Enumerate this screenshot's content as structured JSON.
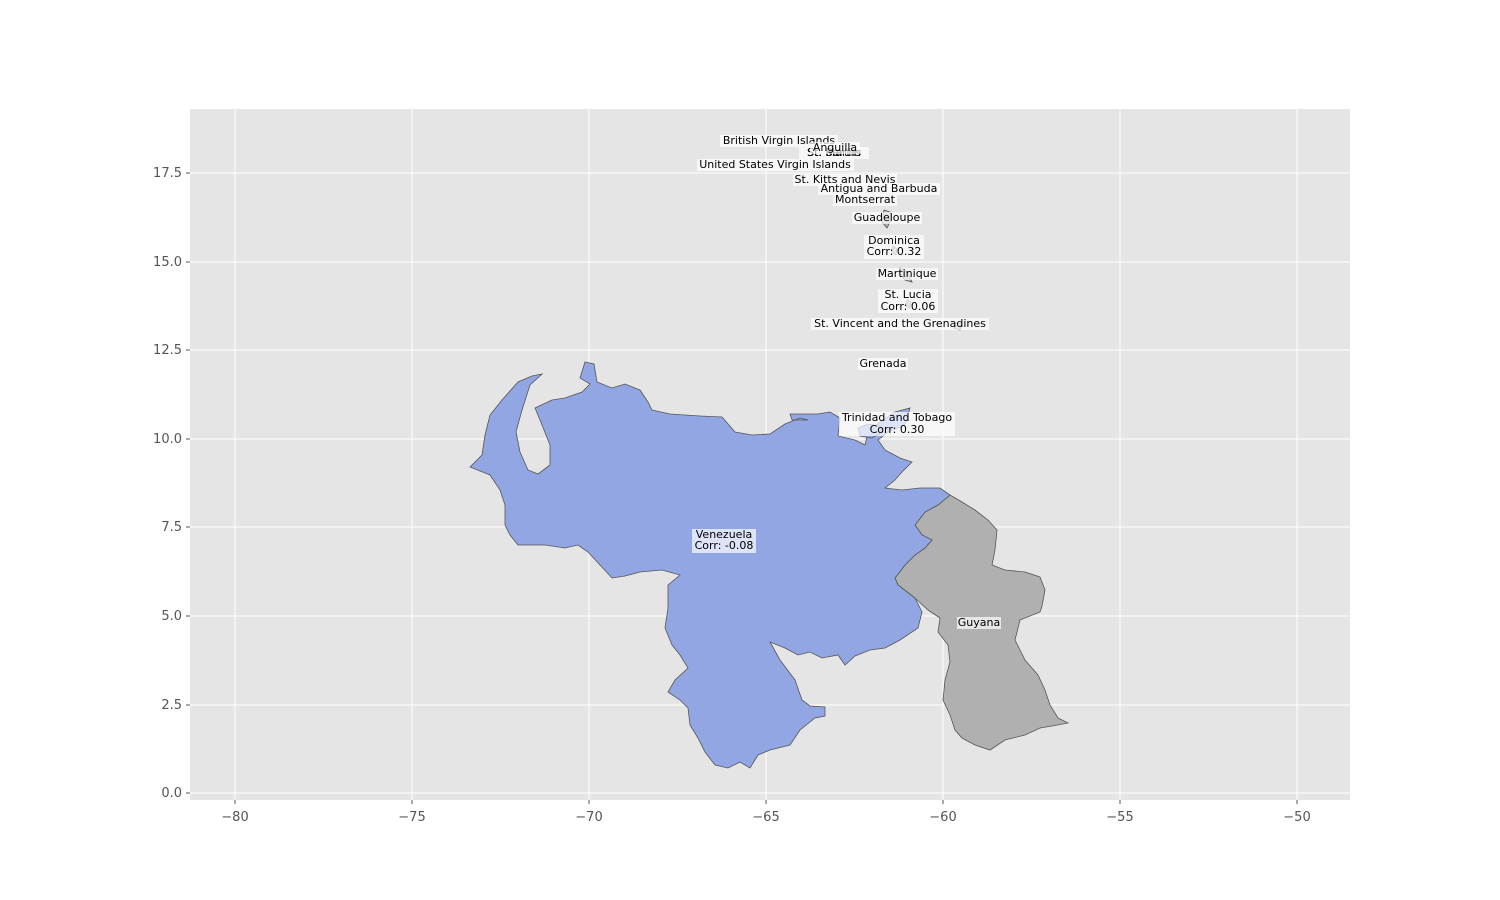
{
  "map": {
    "x_ticks": [
      "−80",
      "−75",
      "−70",
      "−65",
      "−60",
      "−55",
      "−50"
    ],
    "y_ticks": [
      "0.0",
      "2.5",
      "5.0",
      "7.5",
      "10.0",
      "12.5",
      "15.0",
      "17.5"
    ],
    "colors": {
      "background": "#e5e5e5",
      "grid": "#ffffff",
      "highlighted": "#92a6e3",
      "other": "#b0b0b0",
      "border": "#555555"
    },
    "labels": {
      "british_virgin_islands": "British Virgin Islands",
      "anguilla": "Anguilla",
      "st_barthelemy": "St. Barths",
      "st_martin": "St. Martin",
      "us_virgin_islands": "United States Virgin Islands",
      "st_kitts": "St. Kitts and Nevis",
      "antigua": "Antigua and Barbuda",
      "montserrat": "Montserrat",
      "guadeloupe": "Guadeloupe",
      "dominica": "Dominica",
      "dominica_corr": "Corr: 0.32",
      "martinique": "Martinique",
      "st_lucia": "St. Lucia",
      "st_lucia_corr": "Corr: 0.06",
      "st_vincent": "St. Vincent and the Grenadines",
      "grenada": "Grenada",
      "trinidad": "Trinidad and Tobago",
      "trinidad_corr": "Corr: 0.30",
      "venezuela": "Venezuela",
      "venezuela_corr": "Corr: -0.08",
      "guyana": "Guyana"
    }
  }
}
